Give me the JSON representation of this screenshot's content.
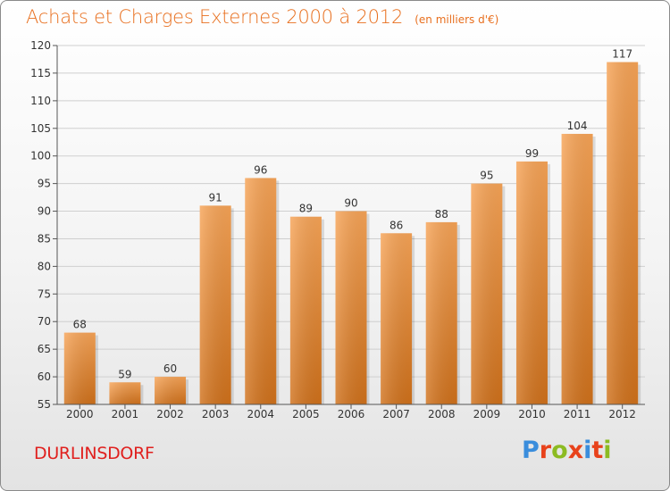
{
  "header": {
    "title": "Achats et Charges Externes 2000 à 2012",
    "unit": "(en milliers d'€)"
  },
  "footer": {
    "commune": "DURLINSDORF",
    "brand": "Proxiti",
    "brand_colors": [
      "#3a8ddc",
      "#e8421b",
      "#8cbb22",
      "#e8421b",
      "#3a8ddc",
      "#e8421b",
      "#8cbb22"
    ]
  },
  "colors": {
    "bar_top": "#f7a457",
    "bar_bottom": "#d0711b",
    "axis": "#555555",
    "grid": "#cfcfcf",
    "title": "#e86f1e",
    "commune": "#e0201e"
  },
  "chart_data": {
    "type": "bar",
    "categories": [
      "2000",
      "2001",
      "2002",
      "2003",
      "2004",
      "2005",
      "2006",
      "2007",
      "2008",
      "2009",
      "2010",
      "2011",
      "2012"
    ],
    "values": [
      68,
      59,
      60,
      91,
      96,
      89,
      90,
      86,
      88,
      95,
      99,
      104,
      117
    ],
    "value_labels": [
      "68",
      "59",
      "60",
      "91",
      "96",
      "89",
      "90",
      "86",
      "88",
      "95",
      "99",
      "104",
      "117"
    ],
    "ylim": [
      55,
      120
    ],
    "yticks": [
      55,
      60,
      65,
      70,
      75,
      80,
      85,
      90,
      95,
      100,
      105,
      110,
      115,
      120
    ],
    "grid": true
  }
}
